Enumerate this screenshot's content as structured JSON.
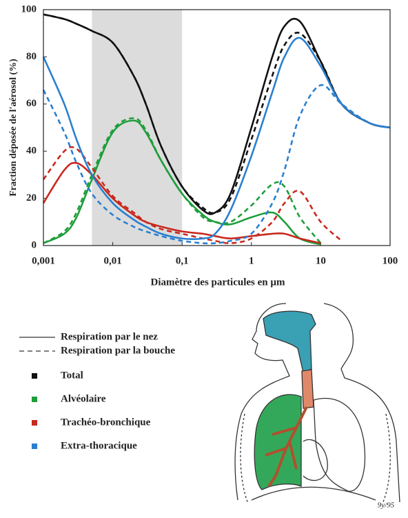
{
  "chart_data": {
    "type": "line",
    "xlabel": "Diamètre des particules en µm",
    "ylabel": "Fraction déposée de l'aérosol (%)",
    "xscale": "log",
    "xlim": [
      0.001,
      100
    ],
    "xticks": [
      {
        "value": 0.001,
        "label": "0,001"
      },
      {
        "value": 0.01,
        "label": "0,01"
      },
      {
        "value": 0.1,
        "label": "0,1"
      },
      1,
      10,
      100
    ],
    "ylim": [
      0,
      100
    ],
    "yticks": [
      0,
      20,
      40,
      60,
      80,
      100
    ],
    "shaded_region": [
      0.005,
      0.1
    ],
    "styles": {
      "nose": "Respiration par le nez",
      "mouth": "Respiration par la bouche"
    },
    "x": [
      0.001,
      0.002,
      0.003,
      0.005,
      0.01,
      0.02,
      0.03,
      0.05,
      0.1,
      0.2,
      0.3,
      0.5,
      1,
      2,
      3,
      5,
      10,
      20,
      50,
      100
    ],
    "series": [
      {
        "name": "Total",
        "color": "#111111",
        "nose": [
          98,
          96,
          94,
          91,
          86,
          72,
          60,
          42,
          25,
          15,
          14,
          22,
          50,
          80,
          93,
          95,
          78,
          60,
          52,
          50
        ],
        "mouth": [
          98,
          96,
          94,
          91,
          86,
          72,
          60,
          42,
          25,
          16,
          14,
          20,
          45,
          72,
          85,
          90,
          78,
          60,
          52,
          50
        ]
      },
      {
        "name": "Alvéolaire",
        "color": "#1e9e3a",
        "nose": [
          1,
          5,
          12,
          28,
          48,
          53,
          48,
          36,
          22,
          13,
          10,
          9,
          12,
          14,
          10,
          3,
          0.5,
          null,
          null,
          null
        ],
        "mouth": [
          1,
          6,
          14,
          30,
          49,
          54,
          49,
          36,
          22,
          12,
          10,
          10,
          17,
          26,
          25,
          12,
          1,
          null,
          null,
          null
        ]
      },
      {
        "name": "Trachéo-bronchique",
        "color": "#c8281e",
        "nose": [
          18,
          32,
          35,
          30,
          20,
          13,
          10,
          8,
          6,
          5,
          4,
          3,
          4,
          5,
          5,
          3,
          1,
          null,
          null,
          null
        ],
        "mouth": [
          28,
          40,
          41,
          33,
          21,
          14,
          10,
          7,
          5,
          3,
          2,
          1,
          3,
          10,
          18,
          23,
          10,
          2,
          null,
          null
        ]
      },
      {
        "name": "Extra-thoracique",
        "color": "#2a7fd0",
        "nose": [
          80,
          60,
          45,
          30,
          18,
          11,
          8,
          5,
          3,
          3,
          5,
          15,
          38,
          65,
          80,
          88,
          76,
          60,
          52,
          50
        ],
        "mouth": [
          66,
          48,
          35,
          22,
          13,
          8,
          6,
          4,
          2,
          1,
          1,
          2,
          5,
          18,
          32,
          55,
          68,
          60,
          52,
          50
        ]
      }
    ]
  },
  "illustration": {
    "signature": "9y/95"
  }
}
